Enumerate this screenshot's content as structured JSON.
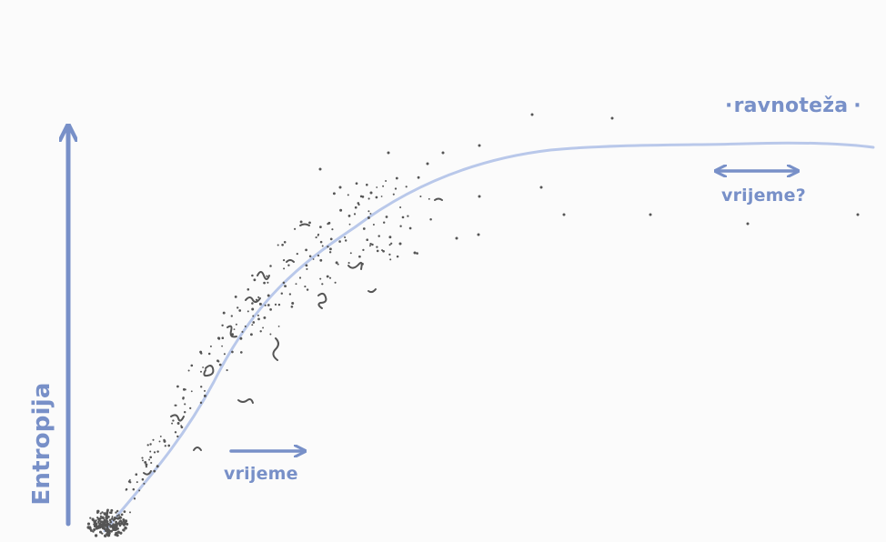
{
  "diagram": {
    "y_axis_label": "Entropija",
    "equilibrium_label": "ravnoteža",
    "time_label": "vrijeme",
    "time_question_label": "vrijeme?",
    "colors": {
      "background": "#fbfbfb",
      "axis": "#7890c8",
      "curve": "#b9c8ea",
      "particles": "#555555",
      "text": "#7890c8"
    }
  }
}
